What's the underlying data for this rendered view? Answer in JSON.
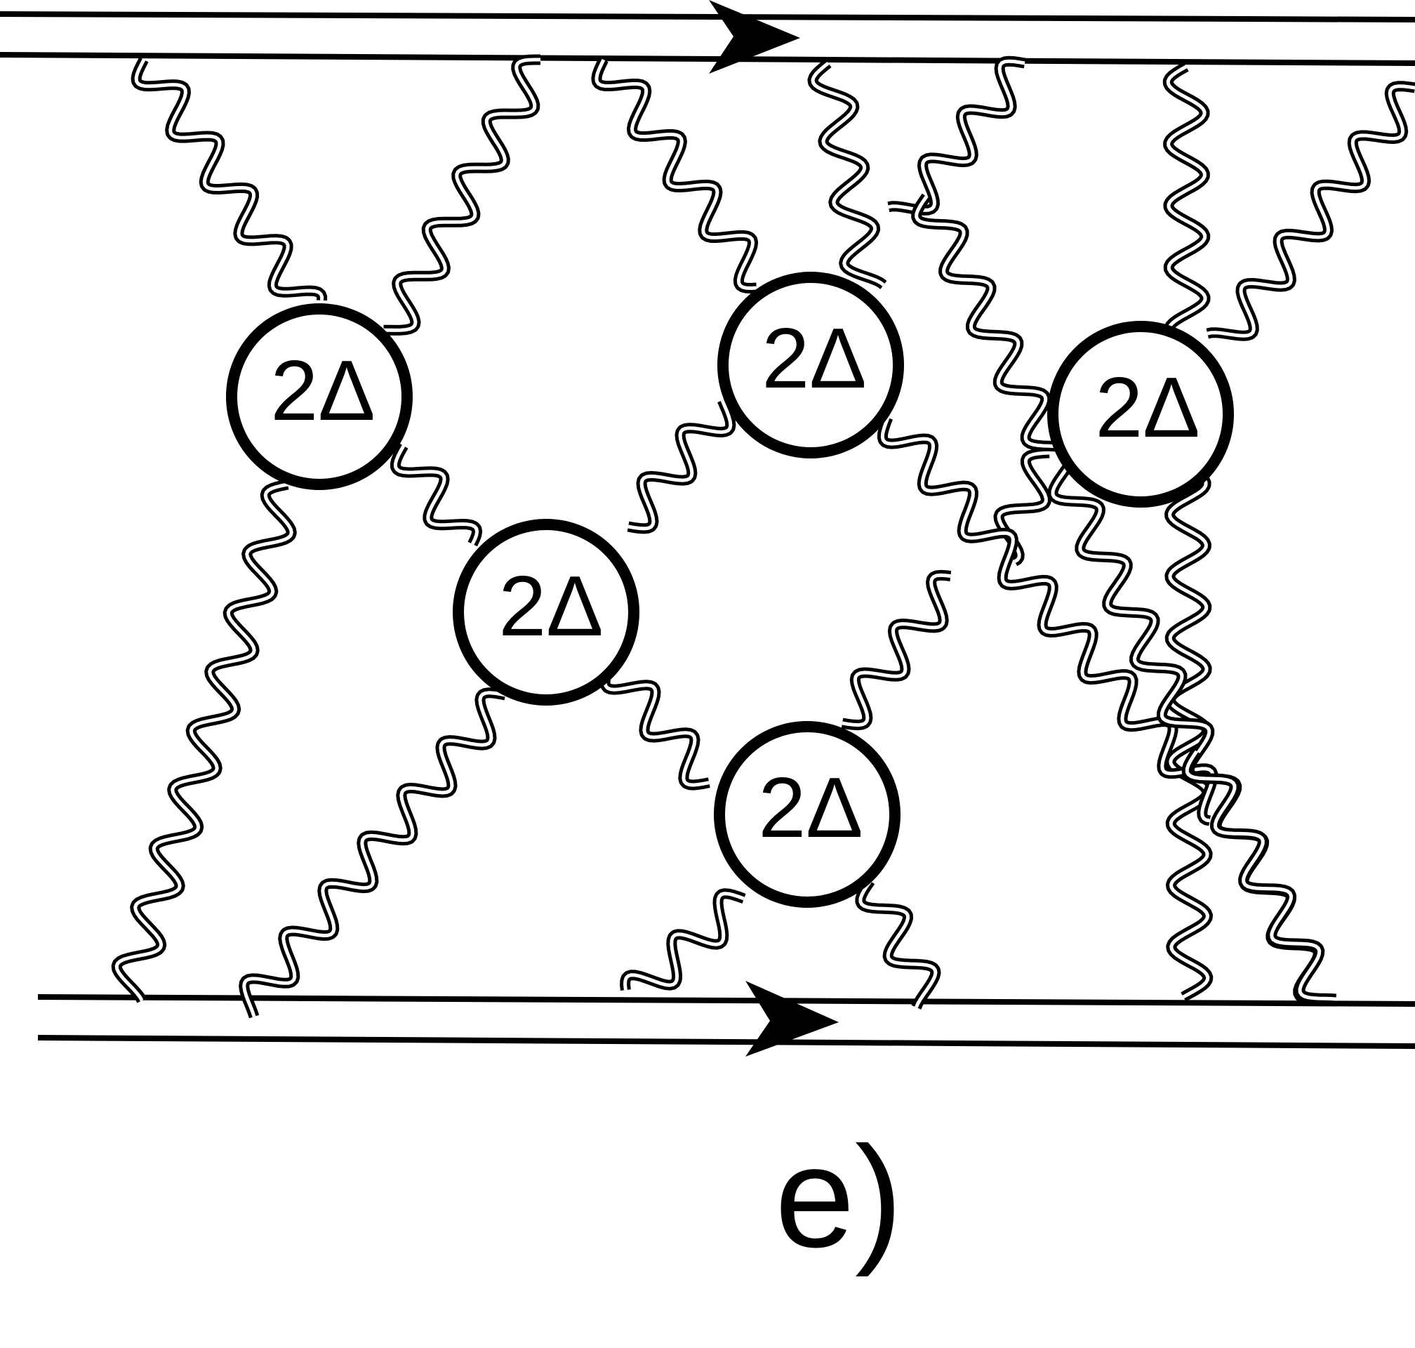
{
  "diagram": {
    "caption": "e)",
    "stroke_color": "#000000",
    "background_color": "#ffffff",
    "vertices": [
      {
        "id": "v1",
        "label": "2Δ"
      },
      {
        "id": "v2",
        "label": "2Δ"
      },
      {
        "id": "v3",
        "label": "2Δ"
      },
      {
        "id": "v4",
        "label": "2Δ"
      },
      {
        "id": "v5",
        "label": "2Δ"
      }
    ],
    "fermion_lines": [
      {
        "id": "top-line",
        "arrow": "right"
      },
      {
        "id": "bottom-line",
        "arrow": "right"
      }
    ],
    "photon_lines": [
      {
        "id": "p1",
        "from": "top-line",
        "to": "v1"
      },
      {
        "id": "p2",
        "from": "top-line",
        "to": "v1"
      },
      {
        "id": "p3",
        "from": "top-line",
        "to": "v2"
      },
      {
        "id": "p4",
        "from": "top-line",
        "to": "v3"
      },
      {
        "id": "p5",
        "from": "top-line",
        "to": "v3"
      },
      {
        "id": "p6",
        "from": "top-line",
        "to": "bottom-line"
      },
      {
        "id": "p7",
        "from": "top-line",
        "to": "v4"
      },
      {
        "id": "p8",
        "from": "v1",
        "to": "bottom-line"
      },
      {
        "id": "p9",
        "from": "v1",
        "to": "v4"
      },
      {
        "id": "p10",
        "from": "v4",
        "to": "v2"
      },
      {
        "id": "p11",
        "from": "v4",
        "to": "bottom-line"
      },
      {
        "id": "p12",
        "from": "v4",
        "to": "v5"
      },
      {
        "id": "p13",
        "from": "v2",
        "to": "v5"
      },
      {
        "id": "p14",
        "from": "v2",
        "to": "v5"
      },
      {
        "id": "p15",
        "from": "v3",
        "to": "bottom-line"
      },
      {
        "id": "p16",
        "from": "v3",
        "to": "bottom-line"
      },
      {
        "id": "p17",
        "from": "v5",
        "to": "bottom-line"
      },
      {
        "id": "p18",
        "from": "v5",
        "to": "bottom-line"
      },
      {
        "id": "p19",
        "from": "top-line",
        "to": "bottom-line"
      }
    ]
  }
}
